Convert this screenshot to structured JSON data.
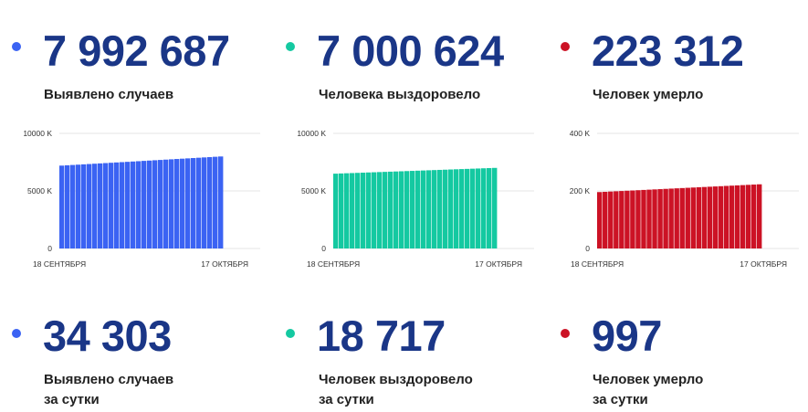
{
  "colors": {
    "blue": "#3b63f3",
    "green": "#14c9a1",
    "red": "#cc1225",
    "number": "#1a3687"
  },
  "totals": [
    {
      "value": "7 992 687",
      "label": "Выявлено случаев",
      "color": "#3b63f3"
    },
    {
      "value": "7 000 624",
      "label": "Человека выздоровело",
      "color": "#14c9a1"
    },
    {
      "value": "223 312",
      "label": "Человек умерло",
      "color": "#cc1225"
    }
  ],
  "daily": [
    {
      "value": "34 303",
      "label_line1": "Выявлено случаев",
      "label_line2": "за сутки",
      "color": "#3b63f3"
    },
    {
      "value": "18 717",
      "label_line1": "Человек выздоровело",
      "label_line2": "за сутки",
      "color": "#14c9a1"
    },
    {
      "value": "997",
      "label_line1": "Человек умерло",
      "label_line2": "за сутки",
      "color": "#cc1225"
    }
  ],
  "chart_data": [
    {
      "type": "bar",
      "x_start_label": "18 СЕНТЯБРЯ",
      "x_end_label": "17 ОКТЯБРЯ",
      "y_ticks": [
        {
          "value": 0,
          "label": "0"
        },
        {
          "value": 5000,
          "label": "5000 K"
        },
        {
          "value": 10000,
          "label": "10000 K"
        }
      ],
      "ylim": [
        0,
        10000
      ],
      "unit": "K",
      "start_value": 7200,
      "end_value": 7993,
      "bar_count": 30,
      "color": "#3b63f3"
    },
    {
      "type": "bar",
      "x_start_label": "18 СЕНТЯБРЯ",
      "x_end_label": "17 ОКТЯБРЯ",
      "y_ticks": [
        {
          "value": 0,
          "label": "0"
        },
        {
          "value": 5000,
          "label": "5000 K"
        },
        {
          "value": 10000,
          "label": "10000 K"
        }
      ],
      "ylim": [
        0,
        10000
      ],
      "unit": "K",
      "start_value": 6500,
      "end_value": 7001,
      "bar_count": 30,
      "color": "#14c9a1"
    },
    {
      "type": "bar",
      "x_start_label": "18 СЕНТЯБРЯ",
      "x_end_label": "17 ОКТЯБРЯ",
      "y_ticks": [
        {
          "value": 0,
          "label": "0"
        },
        {
          "value": 200,
          "label": "200 K"
        },
        {
          "value": 400,
          "label": "400 K"
        }
      ],
      "ylim": [
        0,
        400
      ],
      "unit": "K",
      "start_value": 196,
      "end_value": 223,
      "bar_count": 30,
      "color": "#cc1225"
    }
  ]
}
